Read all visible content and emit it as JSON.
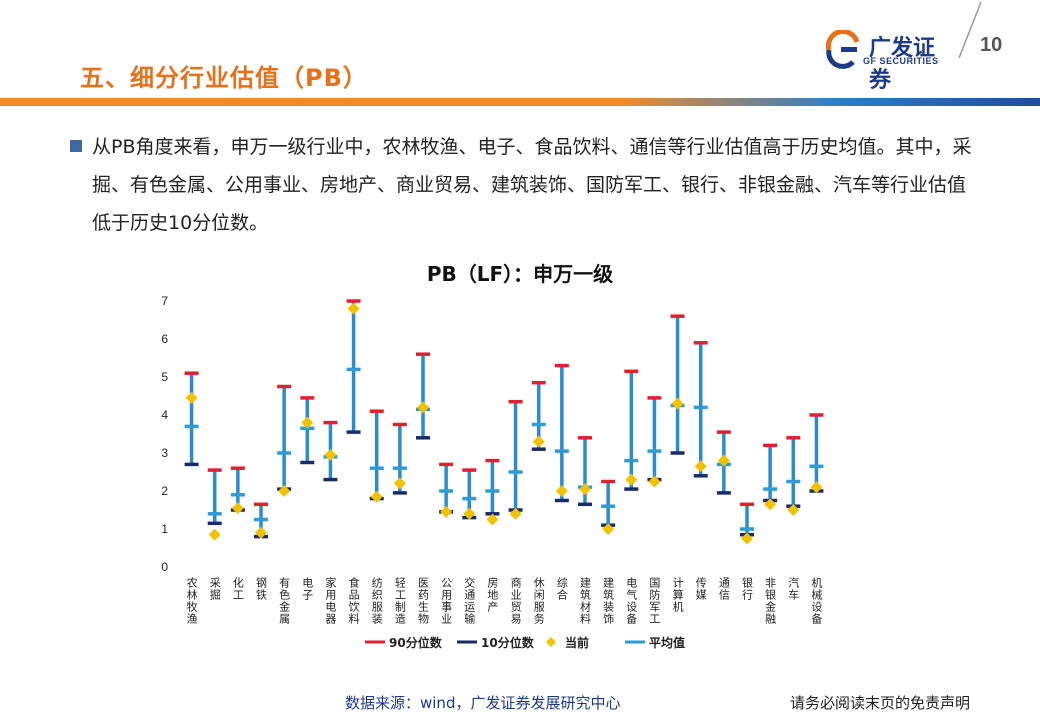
{
  "header": {
    "title": "五、细分行业估值（PB）",
    "logo_cn": "广发证券",
    "logo_en": "GF SECURITIES",
    "page_number": "10",
    "brand_colors": {
      "orange": "#e8701a",
      "blue": "#1d3a8a"
    }
  },
  "bullet": {
    "text": "从PB角度来看，申万一级行业中，农林牧渔、电子、食品饮料、通信等行业估值高于历史均值。其中，采掘、有色金属、公用事业、房地产、商业贸易、建筑装饰、国防军工、银行、非银金融、汽车等行业估值低于历史10分位数。"
  },
  "chart_data": {
    "type": "line",
    "title": "PB（LF）：申万一级",
    "ylim": [
      0,
      7
    ],
    "yticks": [
      "0",
      "1",
      "2",
      "3",
      "4",
      "5",
      "6",
      "7"
    ],
    "categories": [
      "农林牧渔",
      "采掘",
      "化工",
      "钢铁",
      "有色金属",
      "电子",
      "家用电器",
      "食品饮料",
      "纺织服装",
      "轻工制造",
      "医药生物",
      "公用事业",
      "交通运输",
      "房地产",
      "商业贸易",
      "休闲服务",
      "综合",
      "建筑材料",
      "建筑装饰",
      "电气设备",
      "国防军工",
      "计算机",
      "传媒",
      "通信",
      "银行",
      "非银金融",
      "汽车",
      "机械设备"
    ],
    "series": [
      {
        "name": "90分位数",
        "color": "#e02030",
        "values": [
          5.1,
          2.55,
          2.6,
          1.65,
          4.75,
          4.45,
          3.8,
          7.0,
          4.1,
          3.75,
          5.6,
          2.7,
          2.55,
          2.8,
          4.35,
          4.85,
          5.3,
          3.4,
          2.25,
          5.15,
          4.45,
          6.6,
          5.9,
          3.55,
          1.65,
          3.2,
          3.4,
          4.0
        ]
      },
      {
        "name": "10分位数",
        "color": "#1a2b6b",
        "values": [
          2.7,
          1.15,
          1.5,
          0.8,
          2.05,
          2.75,
          2.3,
          3.55,
          1.8,
          1.95,
          3.4,
          1.45,
          1.3,
          1.4,
          1.5,
          3.1,
          1.75,
          1.65,
          1.1,
          2.05,
          2.3,
          3.0,
          2.4,
          1.95,
          0.85,
          1.75,
          1.6,
          2.0
        ]
      },
      {
        "name": "当前",
        "color": "#f2c200",
        "values": [
          4.45,
          0.85,
          1.55,
          0.9,
          2.0,
          3.8,
          2.95,
          6.8,
          1.85,
          2.2,
          4.2,
          1.45,
          1.4,
          1.25,
          1.4,
          3.3,
          2.0,
          2.05,
          1.0,
          2.3,
          2.25,
          4.3,
          2.65,
          2.8,
          0.75,
          1.65,
          1.5,
          2.1
        ]
      },
      {
        "name": "平均值",
        "color": "#2e9bd6",
        "values": [
          3.7,
          1.4,
          1.9,
          1.25,
          3.0,
          3.65,
          2.9,
          5.2,
          2.6,
          2.6,
          4.15,
          2.0,
          1.8,
          2.0,
          2.5,
          3.75,
          3.05,
          2.1,
          1.6,
          2.8,
          3.05,
          4.25,
          4.2,
          2.7,
          1.0,
          2.05,
          2.25,
          2.65
        ]
      }
    ],
    "range_line_color": "#2a8bcf",
    "grid": false,
    "legend_position": "bottom"
  },
  "footer": {
    "source": "数据来源：wind，广发证券发展研究中心",
    "disclaimer": "请务必阅读末页的免责声明"
  }
}
